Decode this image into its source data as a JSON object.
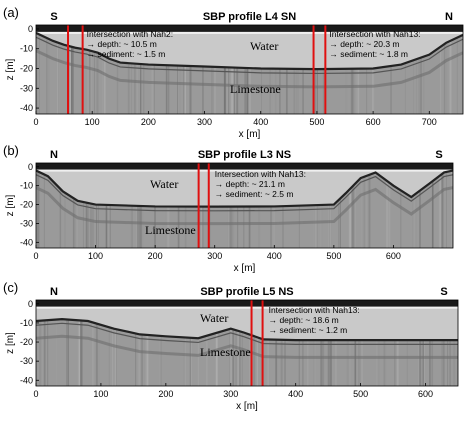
{
  "chart_data": [
    {
      "type": "sub-bottom profile",
      "panel_label": "(a)",
      "title": "SBP profile L4 SN",
      "direction_left": "S",
      "direction_right": "N",
      "xlabel": "x [m]",
      "ylabel": "z [m]",
      "xlim": [
        0,
        760
      ],
      "ylim": [
        -43,
        2
      ],
      "xticks": [
        0,
        100,
        200,
        300,
        400,
        500,
        600,
        700
      ],
      "yticks": [
        0,
        -10,
        -20,
        -30,
        -40
      ],
      "water_label": "Water",
      "limestone_label": "Limestone",
      "seafloor_profile": [
        [
          0,
          -2
        ],
        [
          15,
          -4
        ],
        [
          30,
          -6
        ],
        [
          50,
          -8
        ],
        [
          70,
          -9.5
        ],
        [
          90,
          -10.5
        ],
        [
          110,
          -12
        ],
        [
          130,
          -15
        ],
        [
          150,
          -17
        ],
        [
          200,
          -18
        ],
        [
          300,
          -19
        ],
        [
          400,
          -20
        ],
        [
          500,
          -20.3
        ],
        [
          600,
          -20
        ],
        [
          650,
          -18
        ],
        [
          700,
          -13
        ],
        [
          730,
          -7
        ],
        [
          760,
          -3
        ]
      ],
      "intersections": [
        {
          "name": "Nah2",
          "x": [
            57,
            83
          ],
          "lines": [
            "Intersection with Nah2:",
            "→ depth: ~ 10.5 m",
            "→ sediment: ~ 1.5 m"
          ]
        },
        {
          "name": "Nah13",
          "x": [
            494,
            515
          ],
          "lines": [
            "Intersection with Nah13:",
            "→ depth: ~ 20.3 m",
            "→ sediment: ~ 1.8 m"
          ]
        }
      ]
    },
    {
      "type": "sub-bottom profile",
      "panel_label": "(b)",
      "title": "SBP profile L3 NS",
      "direction_left": "N",
      "direction_right": "S",
      "xlabel": "x [m]",
      "ylabel": "z [m]",
      "xlim": [
        0,
        700
      ],
      "ylim": [
        -43,
        2
      ],
      "xticks": [
        0,
        100,
        200,
        300,
        400,
        500,
        600
      ],
      "yticks": [
        0,
        -10,
        -20,
        -30,
        -40
      ],
      "water_label": "Water",
      "limestone_label": "Limestone",
      "seafloor_profile": [
        [
          0,
          -2
        ],
        [
          20,
          -5
        ],
        [
          45,
          -13
        ],
        [
          70,
          -18
        ],
        [
          100,
          -20
        ],
        [
          200,
          -21
        ],
        [
          300,
          -21.1
        ],
        [
          400,
          -21
        ],
        [
          500,
          -20
        ],
        [
          520,
          -14
        ],
        [
          545,
          -6
        ],
        [
          570,
          -3
        ],
        [
          600,
          -10
        ],
        [
          630,
          -16
        ],
        [
          660,
          -9
        ],
        [
          685,
          -3
        ],
        [
          700,
          -2
        ]
      ],
      "intersections": [
        {
          "name": "Nah13",
          "x": [
            273,
            290
          ],
          "lines": [
            "Intersection with Nah13:",
            "→ depth: ~ 21.1 m",
            "→ sediment: ~ 2.5 m"
          ]
        }
      ]
    },
    {
      "type": "sub-bottom profile",
      "panel_label": "(c)",
      "title": "SBP profile L5 NS",
      "direction_left": "N",
      "direction_right": "S",
      "xlabel": "x [m]",
      "ylabel": "z [m]",
      "xlim": [
        0,
        650
      ],
      "ylim": [
        -43,
        2
      ],
      "xticks": [
        0,
        100,
        200,
        300,
        400,
        500,
        600
      ],
      "yticks": [
        0,
        -10,
        -20,
        -30,
        -40
      ],
      "water_label": "Water",
      "limestone_label": "Limestone",
      "seafloor_profile": [
        [
          0,
          -9
        ],
        [
          40,
          -8
        ],
        [
          80,
          -9
        ],
        [
          120,
          -13
        ],
        [
          160,
          -16
        ],
        [
          200,
          -17
        ],
        [
          250,
          -18
        ],
        [
          300,
          -13
        ],
        [
          320,
          -15
        ],
        [
          350,
          -18.6
        ],
        [
          400,
          -19
        ],
        [
          500,
          -19
        ],
        [
          600,
          -19
        ],
        [
          650,
          -19
        ]
      ],
      "intersections": [
        {
          "name": "Nah13",
          "x": [
            332,
            349
          ],
          "lines": [
            "Intersection with Nah13:",
            "→ depth: ~ 18.6 m",
            "→ sediment: ~ 1.2 m"
          ]
        }
      ]
    }
  ]
}
